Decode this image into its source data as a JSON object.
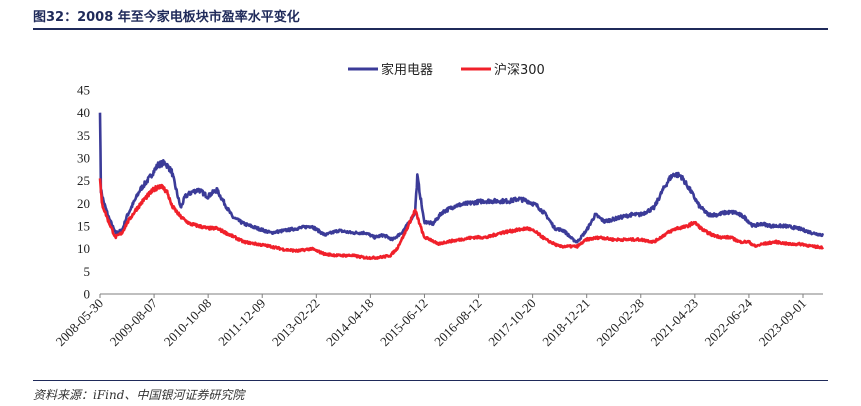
{
  "header": {
    "title": "图32：2008 年至今家电板块市盈率水平变化"
  },
  "footer": {
    "source": "资料来源：iFind、中国银河证券研究院"
  },
  "colors": {
    "series1": "#3b3b98",
    "series2": "#f0202a",
    "axis": "#7f7f7f",
    "rule": "#1f2a5a"
  },
  "chart_data": {
    "type": "line",
    "title": "2008 年至今家电板块市盈率水平变化",
    "xlabel": "",
    "ylabel": "",
    "ylim": [
      0,
      45
    ],
    "yticks": [
      0,
      5,
      10,
      15,
      20,
      25,
      30,
      35,
      40,
      45
    ],
    "legend_position": "top-center",
    "x_ticks": [
      "2008-05-30",
      "2009-08-07",
      "2010-10-08",
      "2011-12-09",
      "2013-02-22",
      "2014-04-18",
      "2015-06-12",
      "2016-08-12",
      "2017-10-20",
      "2018-12-21",
      "2020-02-28",
      "2021-04-23",
      "2022-06-24",
      "2023-09-01"
    ],
    "x_range": [
      2008.41,
      2024.45
    ],
    "series": [
      {
        "name": "家用电器",
        "color": "#3b3b98",
        "x": [
          2008.41,
          2008.43,
          2008.5,
          2008.6,
          2008.75,
          2008.9,
          2009.0,
          2009.1,
          2009.3,
          2009.5,
          2009.7,
          2009.85,
          2010.0,
          2010.1,
          2010.2,
          2010.3,
          2010.45,
          2010.6,
          2010.8,
          2011.0,
          2011.2,
          2011.35,
          2011.6,
          2011.9,
          2012.2,
          2012.5,
          2012.8,
          2013.1,
          2013.4,
          2013.7,
          2014.0,
          2014.3,
          2014.5,
          2014.7,
          2014.9,
          2015.1,
          2015.25,
          2015.4,
          2015.45,
          2015.6,
          2015.8,
          2016.0,
          2016.3,
          2016.6,
          2016.9,
          2017.2,
          2017.5,
          2017.7,
          2017.9,
          2018.1,
          2018.3,
          2018.5,
          2018.7,
          2018.9,
          2019.0,
          2019.2,
          2019.4,
          2019.6,
          2019.8,
          2020.0,
          2020.2,
          2020.4,
          2020.7,
          2020.9,
          2021.05,
          2021.15,
          2021.3,
          2021.5,
          2021.7,
          2021.9,
          2022.1,
          2022.3,
          2022.5,
          2022.7,
          2022.9,
          2023.1,
          2023.3,
          2023.6,
          2023.9,
          2024.2,
          2024.45
        ],
        "values": [
          40,
          23,
          20,
          17,
          13.5,
          14,
          17,
          19,
          23,
          25.5,
          28.5,
          29,
          27,
          23,
          19,
          21.5,
          22.5,
          23,
          21.5,
          23,
          19.5,
          17,
          15.5,
          14.5,
          13.5,
          14,
          14.5,
          15,
          13,
          14,
          13.5,
          13.5,
          12.5,
          13,
          12,
          13.5,
          15.5,
          18,
          26,
          16,
          15.5,
          18,
          19.5,
          20,
          20.5,
          20.5,
          20.5,
          21,
          20.5,
          19.5,
          17.5,
          14.5,
          14,
          12,
          11.5,
          14,
          17.5,
          16,
          16.5,
          17,
          17.5,
          17.5,
          19,
          23,
          25.5,
          26.5,
          26,
          23,
          19.5,
          17.5,
          17.5,
          18,
          18,
          17,
          15,
          15.5,
          15,
          15,
          14.5,
          13.5,
          13
        ]
      },
      {
        "name": "沪深300",
        "color": "#f0202a",
        "x": [
          2008.41,
          2008.45,
          2008.6,
          2008.75,
          2008.9,
          2009.0,
          2009.2,
          2009.4,
          2009.6,
          2009.75,
          2009.9,
          2010.0,
          2010.2,
          2010.4,
          2010.6,
          2010.8,
          2011.0,
          2011.3,
          2011.6,
          2011.9,
          2012.2,
          2012.5,
          2012.8,
          2013.1,
          2013.4,
          2013.7,
          2014.0,
          2014.3,
          2014.5,
          2014.7,
          2014.85,
          2015.0,
          2015.2,
          2015.4,
          2015.5,
          2015.6,
          2015.75,
          2015.9,
          2016.1,
          2016.4,
          2016.7,
          2017.0,
          2017.3,
          2017.6,
          2017.9,
          2018.1,
          2018.3,
          2018.6,
          2018.9,
          2019.0,
          2019.2,
          2019.5,
          2019.8,
          2020.1,
          2020.4,
          2020.7,
          2021.0,
          2021.2,
          2021.4,
          2021.6,
          2021.8,
          2022.0,
          2022.2,
          2022.4,
          2022.6,
          2022.8,
          2022.95,
          2023.1,
          2023.4,
          2023.7,
          2024.0,
          2024.2,
          2024.45
        ],
        "values": [
          25.5,
          20,
          16,
          12.5,
          13.5,
          15.5,
          18.5,
          21,
          23,
          24,
          22.5,
          19.5,
          17,
          15.5,
          15,
          14.5,
          14.5,
          13,
          11.5,
          11,
          10.5,
          9.8,
          9.5,
          10,
          8.8,
          8.5,
          8.5,
          8,
          8,
          8.2,
          8.5,
          10,
          14,
          18.5,
          15.5,
          12.5,
          12,
          11,
          11.5,
          12,
          12.5,
          12.5,
          13.5,
          14,
          14.5,
          13.5,
          12,
          10.5,
          10.5,
          10.5,
          12,
          12.5,
          12,
          12,
          12,
          11.5,
          13.5,
          14.5,
          14.8,
          15.8,
          14,
          13,
          12.5,
          12.5,
          11.5,
          11.5,
          10.5,
          11,
          11.5,
          11,
          11,
          10.5,
          10.3
        ]
      }
    ]
  }
}
